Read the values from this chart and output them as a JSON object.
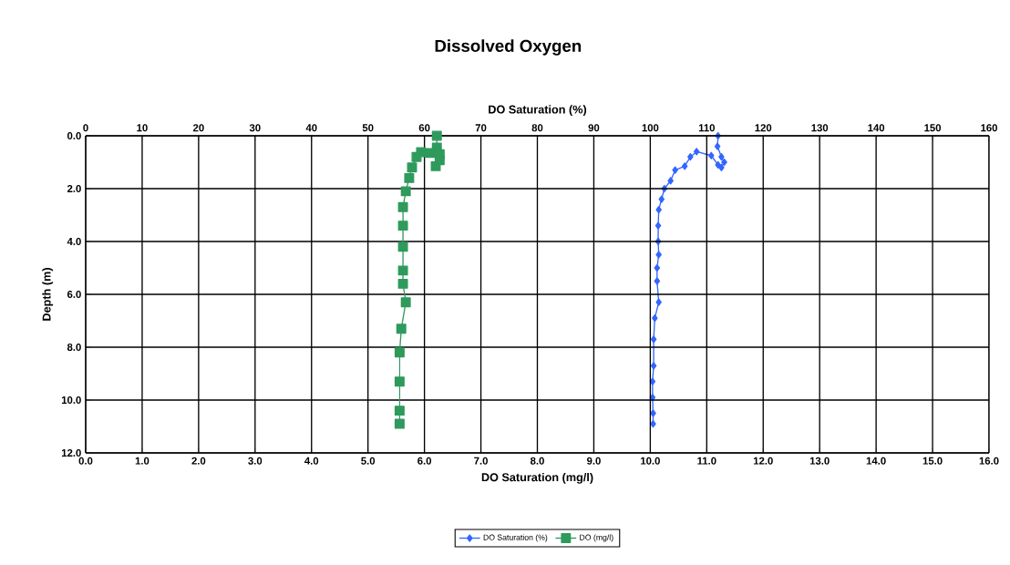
{
  "chart_data": {
    "type": "line",
    "title": "Dissolved Oxygen",
    "xlabel": "DO Saturation (mg/l)",
    "x2label": "DO Saturation (%)",
    "ylabel": "Depth (m)",
    "xlim": [
      0,
      16
    ],
    "xticks": [
      {
        "value": 0,
        "label": "0.0"
      },
      {
        "value": 1,
        "label": "1.0"
      },
      {
        "value": 2,
        "label": "2.0"
      },
      {
        "value": 3,
        "label": "3.0"
      },
      {
        "value": 4,
        "label": "4.0"
      },
      {
        "value": 5,
        "label": "5.0"
      },
      {
        "value": 6,
        "label": "6.0"
      },
      {
        "value": 7,
        "label": "7.0"
      },
      {
        "value": 8,
        "label": "8.0"
      },
      {
        "value": 9,
        "label": "9.0"
      },
      {
        "value": 10,
        "label": "10.0"
      },
      {
        "value": 11,
        "label": "11.0"
      },
      {
        "value": 12,
        "label": "12.0"
      },
      {
        "value": 13,
        "label": "13.0"
      },
      {
        "value": 14,
        "label": "14.0"
      },
      {
        "value": 15,
        "label": "15.0"
      },
      {
        "value": 16,
        "label": "16.0"
      }
    ],
    "x2lim": [
      0,
      160
    ],
    "x2ticks": [
      0,
      10,
      20,
      30,
      40,
      50,
      60,
      70,
      80,
      90,
      100,
      110,
      120,
      130,
      140,
      150,
      160
    ],
    "ylim": [
      12,
      0
    ],
    "yticks": [
      {
        "value": 0,
        "label": "0.0"
      },
      {
        "value": 2,
        "label": "2.0"
      },
      {
        "value": 4,
        "label": "4.0"
      },
      {
        "value": 6,
        "label": "6.0"
      },
      {
        "value": 8,
        "label": "8.0"
      },
      {
        "value": 10,
        "label": "10.0"
      },
      {
        "value": 12,
        "label": "12.0"
      }
    ],
    "grid": true,
    "legend": "bottom",
    "line_style": "solid",
    "series": [
      {
        "name": "DO Saturation (%)",
        "color": "#3366ff",
        "axis": "x2",
        "marker": "diamond",
        "x": [
          112.0,
          111.9,
          112.6,
          113.1,
          112.6,
          112.0,
          110.8,
          108.2,
          107.1,
          106.1,
          104.4,
          103.6,
          102.5,
          102.0,
          101.5,
          101.4,
          101.4,
          101.5,
          101.2,
          101.2,
          101.5,
          100.8,
          100.6,
          100.6,
          100.4,
          100.4,
          100.5,
          100.5
        ],
        "values": [
          0.0,
          0.4,
          0.8,
          1.0,
          1.2,
          1.1,
          0.75,
          0.6,
          0.8,
          1.15,
          1.3,
          1.7,
          2.0,
          2.4,
          2.8,
          3.4,
          4.0,
          4.5,
          5.0,
          5.5,
          6.3,
          6.9,
          7.7,
          8.7,
          9.3,
          9.9,
          10.5,
          10.9
        ]
      },
      {
        "name": "DO (mg/l)",
        "color": "#2e9a5c",
        "marker": "square",
        "x": [
          6.22,
          6.22,
          6.27,
          6.2,
          6.27,
          6.1,
          5.94,
          5.86,
          5.78,
          5.73,
          5.67,
          5.62,
          5.62,
          5.62,
          5.62,
          5.62,
          5.67,
          5.59,
          5.56,
          5.56,
          5.56,
          5.56
        ],
        "values": [
          0.0,
          0.45,
          0.7,
          1.15,
          0.92,
          0.65,
          0.62,
          0.8,
          1.2,
          1.6,
          2.1,
          2.7,
          3.4,
          4.2,
          5.1,
          5.6,
          6.3,
          7.3,
          8.2,
          9.3,
          10.4,
          10.9
        ]
      }
    ]
  }
}
